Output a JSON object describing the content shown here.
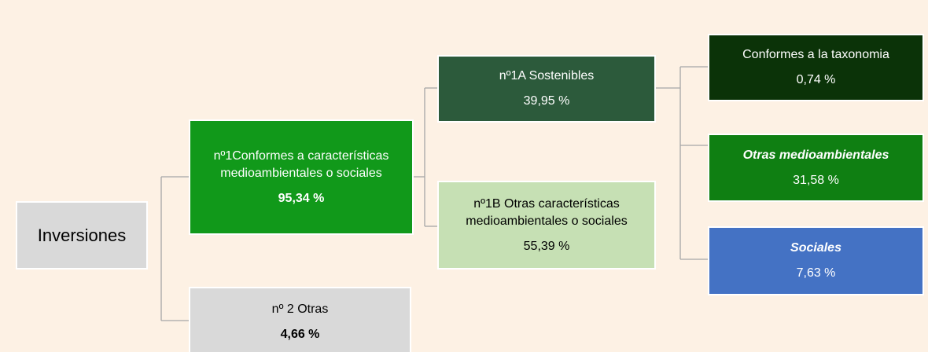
{
  "nodes": [
    {
      "lines": [
        "Inversiones"
      ]
    },
    {
      "lines": [
        "nº1Conformes a características",
        "medioambientales o  sociales"
      ],
      "value": "95,34 %"
    },
    {
      "lines": [
        "nº 2 Otras"
      ],
      "value": "4,66 %"
    },
    {
      "lines": [
        "nº1A Sostenibles"
      ],
      "value": "39,95 %"
    },
    {
      "lines": [
        "nº1B Otras características",
        "medioambientales o sociales"
      ],
      "value": "55,39 %"
    },
    {
      "lines": [
        "Conformes a la taxonomia"
      ],
      "value": "0,74 %"
    },
    {
      "lines": [
        "Otras medioambientales"
      ],
      "value": "31,58 %"
    },
    {
      "lines": [
        "Sociales"
      ],
      "value": "7,63 %"
    }
  ]
}
